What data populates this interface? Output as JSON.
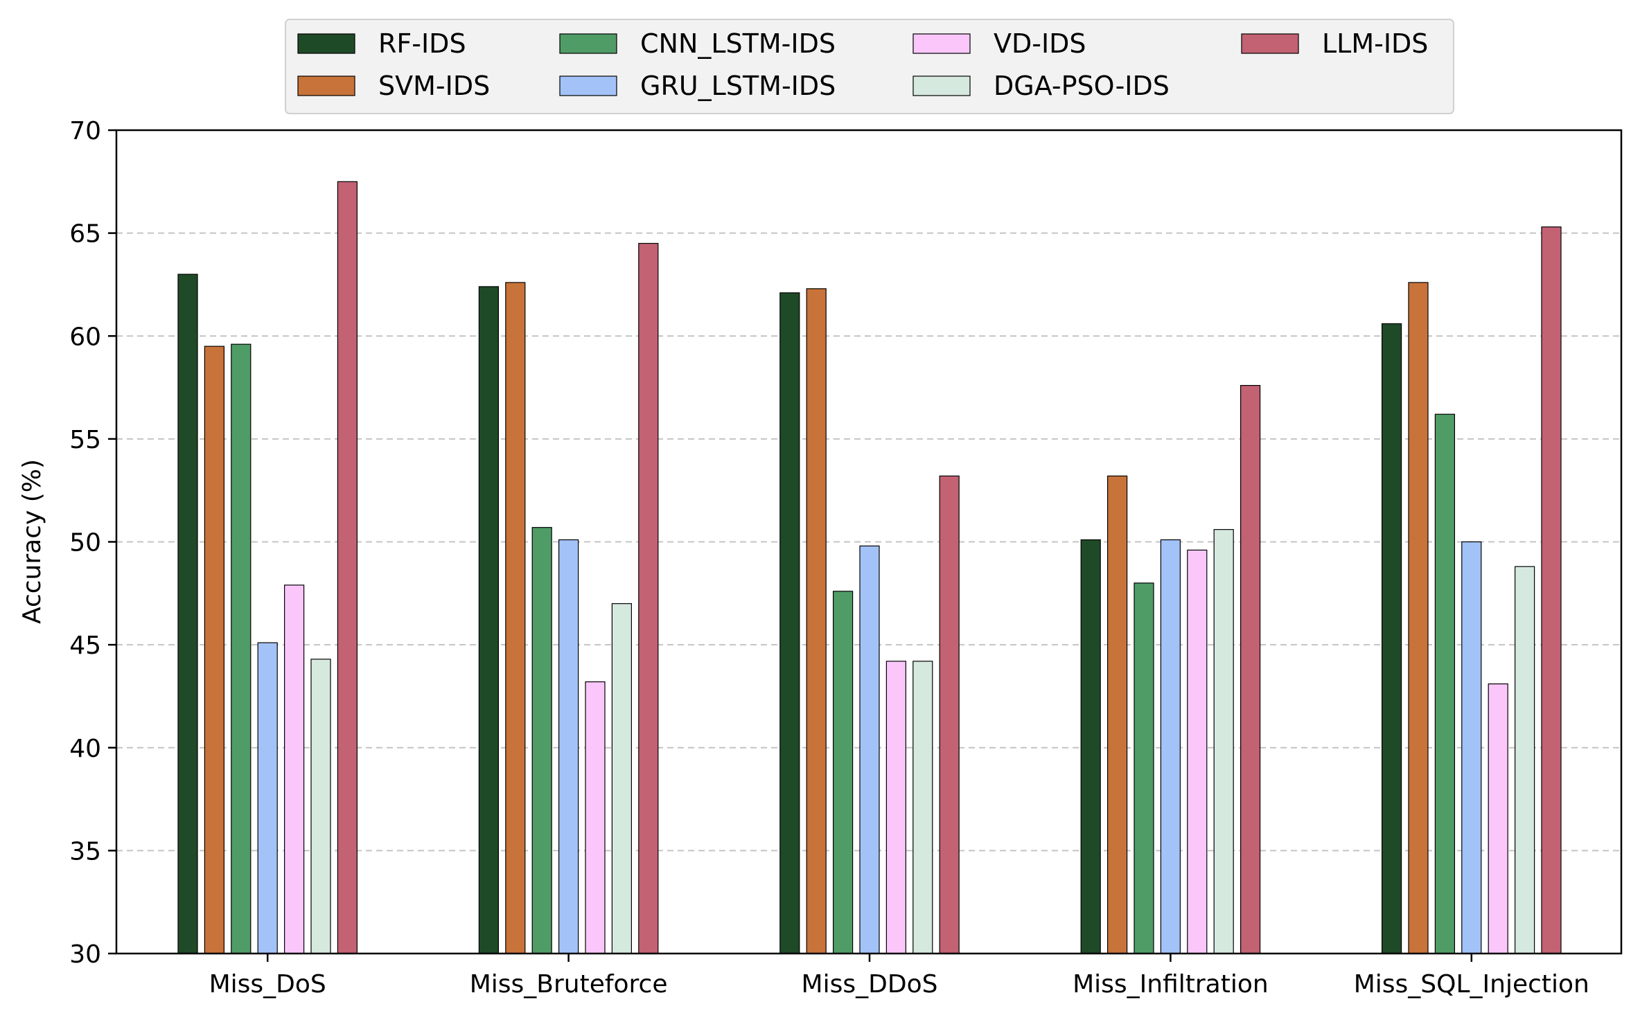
{
  "chart_data": {
    "type": "bar",
    "title": "",
    "xlabel": "",
    "ylabel": "Accuracy (%)",
    "ylim": [
      30,
      70
    ],
    "yticks": [
      "30",
      "35",
      "40",
      "45",
      "50",
      "55",
      "60",
      "65",
      "70"
    ],
    "grid": "y-dashed",
    "legend_position": "top-center",
    "categories": [
      "Miss_DoS",
      "Miss_Bruteforce",
      "Miss_DDoS",
      "Miss_Infiltration",
      "Miss_SQL_Injection"
    ],
    "series": [
      {
        "name": "RF-IDS",
        "color": "#1f4a27",
        "values": [
          63.0,
          62.4,
          62.1,
          50.1,
          60.6
        ]
      },
      {
        "name": "SVM-IDS",
        "color": "#c8733a",
        "values": [
          59.5,
          62.6,
          62.3,
          53.2,
          62.6
        ]
      },
      {
        "name": "CNN_LSTM-IDS",
        "color": "#4f9c67",
        "values": [
          59.6,
          50.7,
          47.6,
          48.0,
          56.2
        ]
      },
      {
        "name": "GRU_LSTM-IDS",
        "color": "#a3c3f8",
        "values": [
          45.1,
          50.1,
          49.8,
          50.1,
          50.0
        ]
      },
      {
        "name": "VD-IDS",
        "color": "#fbc7fb",
        "values": [
          47.9,
          43.2,
          44.2,
          49.6,
          43.1
        ]
      },
      {
        "name": "DGA-PSO-IDS",
        "color": "#d6e9df",
        "values": [
          44.3,
          47.0,
          44.2,
          50.6,
          48.8
        ]
      },
      {
        "name": "LLM-IDS",
        "color": "#c26273",
        "values": [
          67.5,
          64.5,
          53.2,
          57.6,
          65.3
        ]
      }
    ]
  }
}
